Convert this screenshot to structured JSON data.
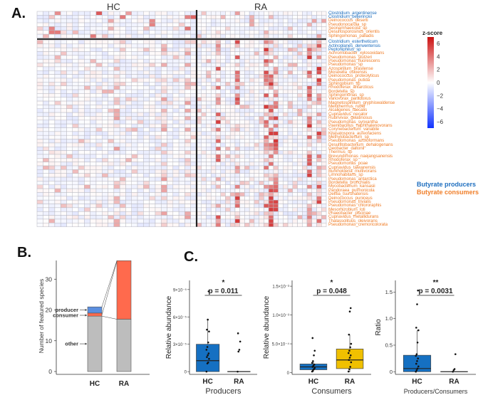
{
  "figure": {
    "panel_a_label": "A.",
    "panel_b_label": "B.",
    "panel_c_label": "C."
  },
  "colors": {
    "producer_text": "#1f6fbf",
    "consumer_text": "#f07f2a",
    "heat_high": "#cc1111",
    "heat_mid": "#ffffff",
    "heat_low": "#1133ff",
    "hc_box": "#1570c2",
    "ra_box_consumers": "#f0c000",
    "stack_other": "#bdbdbd",
    "stack_consumer": "#ff6a4d",
    "stack_producer": "#5b8fe0"
  },
  "chart_data": [
    {
      "type": "heatmap",
      "id": "A",
      "groups": [
        "HC",
        "RA"
      ],
      "columns_per_group": 27,
      "colorbar": {
        "title": "z-score",
        "ticks": [
          6,
          4,
          2,
          0,
          -2,
          -4,
          -6
        ],
        "range": [
          -7,
          7
        ]
      },
      "legend": [
        "Butyrate producers",
        "Butyrate consumers"
      ],
      "top_block_rows": [
        {
          "name": "Clostridium_argentinense",
          "type": "producer"
        },
        {
          "name": "Clostridium_beijerinckii",
          "type": "producer"
        },
        {
          "name": "Deinococcus_deserti",
          "type": "consumer"
        },
        {
          "name": "Pseudonocardia_sp",
          "type": "consumer"
        },
        {
          "name": "Seonamhaeicola_sp",
          "type": "consumer"
        },
        {
          "name": "Desulfosporosinus_orientis",
          "type": "consumer"
        },
        {
          "name": "Sphingomonas_paliadis",
          "type": "consumer"
        }
      ],
      "bottom_block_rows": [
        {
          "name": "Clostridium_estertheticum",
          "type": "producer"
        },
        {
          "name": "Actinoplanes_derwentensis",
          "type": "producer"
        },
        {
          "name": "Peptoniphilus_sp",
          "type": "producer"
        },
        {
          "name": "Achromobacter_xylosoxidans",
          "type": "consumer"
        },
        {
          "name": "Pseudomonas_stutzeri",
          "type": "consumer"
        },
        {
          "name": "Pseudomonas_fluorescens",
          "type": "consumer"
        },
        {
          "name": "Pseudomonas_sp",
          "type": "consumer"
        },
        {
          "name": "Azospirillum_brasilense",
          "type": "consumer"
        },
        {
          "name": "Moraxella_osloensis",
          "type": "consumer"
        },
        {
          "name": "Deinococcus_proteolyticus",
          "type": "consumer"
        },
        {
          "name": "Pseudomonas_putida",
          "type": "consumer"
        },
        {
          "name": "Sphingobium_sp",
          "type": "consumer"
        },
        {
          "name": "Rhodoferax_antarcticus",
          "type": "consumer"
        },
        {
          "name": "Bordetella_sp",
          "type": "consumer"
        },
        {
          "name": "Sphingomonas_sp",
          "type": "consumer"
        },
        {
          "name": "Variovorax_paradoxus",
          "type": "consumer"
        },
        {
          "name": "Magnetospirillum_gryphiswaldense",
          "type": "consumer"
        },
        {
          "name": "Meiothermus_ruber",
          "type": "consumer"
        },
        {
          "name": "Alcaligenes_faecalis",
          "type": "consumer"
        },
        {
          "name": "Cupriavidus_necator",
          "type": "consumer"
        },
        {
          "name": "Rubrivivax_gelatinosus",
          "type": "consumer"
        },
        {
          "name": "Pseudomonas_synxantha",
          "type": "consumer"
        },
        {
          "name": "Paenibacillus_naphthalenovorans",
          "type": "consumer"
        },
        {
          "name": "Corynebacterium_variabile",
          "type": "consumer"
        },
        {
          "name": "Kitasatospora_aureofaciens",
          "type": "consumer"
        },
        {
          "name": "Methylobacterium_sp",
          "type": "consumer"
        },
        {
          "name": "Pseudomonas_azotoformans",
          "type": "consumer"
        },
        {
          "name": "Desulfitobacterium_dehalogenans",
          "type": "consumer"
        },
        {
          "name": "Geobacter_daltonii",
          "type": "consumer"
        },
        {
          "name": "Thermus_sp",
          "type": "consumer"
        },
        {
          "name": "Brevundimonas_naejangsanensis",
          "type": "consumer"
        },
        {
          "name": "Rhodoferax_sp",
          "type": "consumer"
        },
        {
          "name": "Pseudomonas_poae",
          "type": "consumer"
        },
        {
          "name": "Cupriavidus_taiwanensis",
          "type": "consumer"
        },
        {
          "name": "Burkholderia_multivorans",
          "type": "consumer"
        },
        {
          "name": "Limnohabitans_sp",
          "type": "consumer"
        },
        {
          "name": "Pseudomonas_antarctica",
          "type": "consumer"
        },
        {
          "name": "Bordetella_bronchialis",
          "type": "consumer"
        },
        {
          "name": "Mycobacterium_kansasii",
          "type": "consumer"
        },
        {
          "name": "Pandoraea_pulmonicola",
          "type": "consumer"
        },
        {
          "name": "Delftia_tsuruhatensis",
          "type": "consumer"
        },
        {
          "name": "Deinococcus_puniceus",
          "type": "consumer"
        },
        {
          "name": "Pseudomonas_trivialis",
          "type": "consumer"
        },
        {
          "name": "Pseudomonas_chlororaphis",
          "type": "consumer"
        },
        {
          "name": "Mesorhizobium_loti",
          "type": "consumer"
        },
        {
          "name": "Phaeobacter_piscinae",
          "type": "consumer"
        },
        {
          "name": "Cupriavidus_metallidurans",
          "type": "consumer"
        },
        {
          "name": "Thalassolituus_oleivorans",
          "type": "consumer"
        },
        {
          "name": "Pseudomonas_cremoricolorata",
          "type": "consumer"
        }
      ]
    },
    {
      "type": "bar",
      "id": "B",
      "stacked": true,
      "categories": [
        "HC",
        "RA"
      ],
      "ylabel": "Number of featured species",
      "yticks": [
        0,
        10,
        20,
        30
      ],
      "ylim": [
        0,
        37
      ],
      "series": [
        {
          "name": "other",
          "values": [
            18,
            17
          ]
        },
        {
          "name": "consumer",
          "values": [
            1,
            19
          ]
        },
        {
          "name": "producer",
          "values": [
            2,
            0
          ]
        }
      ],
      "annotations": [
        "producer",
        "consumer",
        "other"
      ]
    },
    {
      "type": "box",
      "id": "C1",
      "xlabel": "Producers",
      "ylabel": "Relative abundance",
      "categories": [
        "HC",
        "RA"
      ],
      "yticks": [
        "0",
        "3×10⁻⁵",
        "6×10⁻⁵",
        "9×10⁻⁵"
      ],
      "ytick_values": [
        0,
        3e-05,
        6e-05,
        9e-05
      ],
      "ylim": [
        -3e-06,
        0.0001
      ],
      "pvalue": "p = 0.011",
      "significance": "*",
      "boxes": [
        {
          "group": "HC",
          "q1": 0,
          "median": 1.2e-05,
          "q3": 3e-05,
          "whisker_low": 0,
          "whisker_high": 5.7e-05,
          "points": [
            0,
            9e-06,
            1e-05,
            1.4e-05,
            1.6e-05,
            1.8e-05,
            2e-05,
            2.4e-05,
            2.7e-05,
            3.2e-05,
            4.4e-05,
            4.6e-05,
            5.7e-05,
            8.8e-05
          ]
        },
        {
          "group": "RA",
          "q1": 0,
          "median": 0,
          "q3": 0,
          "whisker_low": 0,
          "whisker_high": 0,
          "points": [
            0,
            2.2e-05,
            2.4e-05,
            3.3e-05,
            4.2e-05
          ]
        }
      ]
    },
    {
      "type": "box",
      "id": "C2",
      "xlabel": "Consumers",
      "ylabel": "Relative abundance",
      "categories": [
        "HC",
        "RA"
      ],
      "yticks": [
        "0",
        "5.0×10⁻⁴",
        "1.0×10⁻³",
        "1.5×10⁻³"
      ],
      "ytick_values": [
        0,
        0.0005,
        0.001,
        0.0015
      ],
      "ylim": [
        -3e-05,
        0.0016
      ],
      "pvalue": "p = 0.048",
      "significance": "*",
      "boxes": [
        {
          "group": "HC",
          "q1": 5e-05,
          "median": 0.0001,
          "q3": 0.00015,
          "whisker_low": 1e-05,
          "whisker_high": 0.00021,
          "points": [
            2e-05,
            4e-05,
            6e-05,
            8e-05,
            0.0001,
            0.00012,
            0.00014,
            0.00017,
            0.0002,
            0.0003,
            0.00038,
            0.0006
          ]
        },
        {
          "group": "RA",
          "q1": 7e-05,
          "median": 0.00022,
          "q3": 0.00041,
          "whisker_low": 1e-05,
          "whisker_high": 0.00066,
          "points": [
            2e-05,
            6e-05,
            0.0001,
            0.00018,
            0.00022,
            0.00026,
            0.0003,
            0.00034,
            0.00038,
            0.00044,
            0.0005,
            0.00066,
            0.00106,
            0.00112
          ]
        }
      ]
    },
    {
      "type": "box",
      "id": "C3",
      "xlabel": "Producers/Consumers",
      "ylabel": "Ratio",
      "categories": [
        "HC",
        "RA"
      ],
      "yticks": [
        "0",
        "0.5",
        "1.0",
        "1.5"
      ],
      "ytick_values": [
        0,
        0.5,
        1.0,
        1.5
      ],
      "ylim": [
        -0.05,
        1.72
      ],
      "pvalue": "p = 0.0031",
      "significance": "**",
      "boxes": [
        {
          "group": "HC",
          "q1": 0,
          "median": 0.06,
          "q3": 0.31,
          "whisker_low": 0,
          "whisker_high": 0.78,
          "points": [
            0,
            0.03,
            0.06,
            0.1,
            0.15,
            0.2,
            0.25,
            0.3,
            0.33,
            0.55,
            0.78,
            0.83,
            1.27,
            1.53
          ]
        },
        {
          "group": "RA",
          "q1": 0,
          "median": 0,
          "q3": 0,
          "whisker_low": 0,
          "whisker_high": 0,
          "points": [
            0,
            0.03,
            0.05,
            0.33
          ]
        }
      ]
    }
  ]
}
